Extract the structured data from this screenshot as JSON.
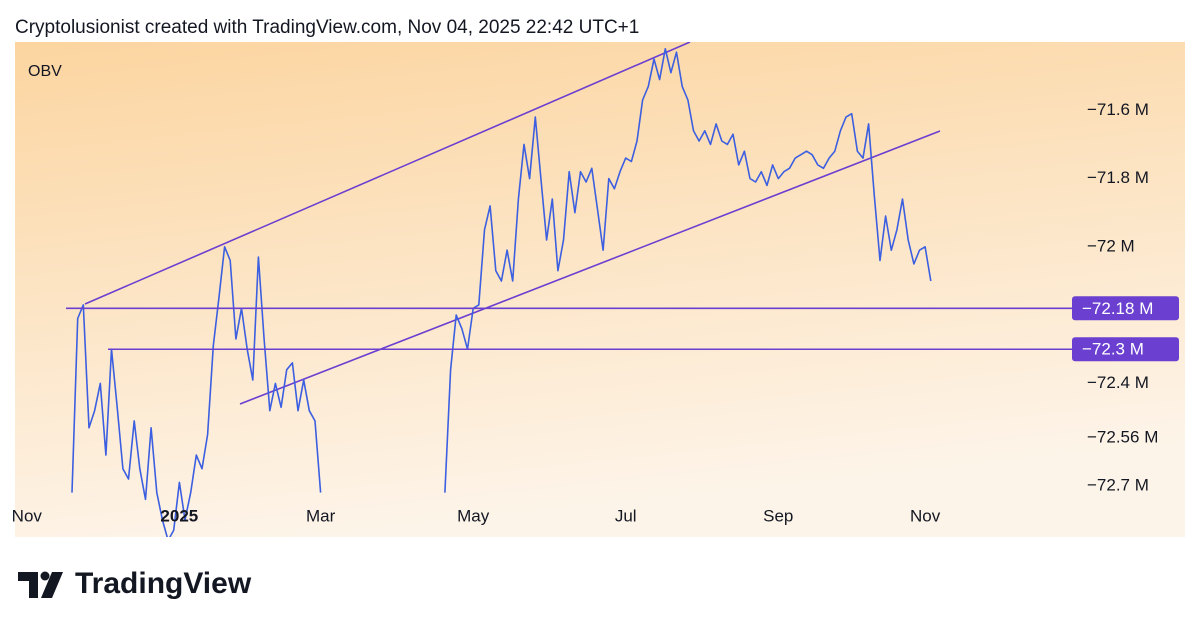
{
  "header": "Cryptolusionist created with TradingView.com, Nov 04, 2025 22:42 UTC+1",
  "brand": "TradingView",
  "chart_data": {
    "type": "line",
    "title": "OBV",
    "categories": [
      "Nov",
      null,
      null,
      null,
      null,
      null,
      null,
      null,
      null,
      null,
      null,
      null,
      null,
      null,
      null,
      null,
      null,
      null,
      null,
      null,
      null,
      null,
      null,
      null,
      null,
      null,
      null,
      "2025",
      null,
      null,
      null,
      null,
      null,
      null,
      null,
      null,
      null,
      null,
      null,
      null,
      null,
      null,
      null,
      null,
      null,
      null,
      null,
      null,
      null,
      null,
      null,
      null,
      "Mar",
      null,
      null,
      null,
      null,
      null,
      null,
      null,
      null,
      null,
      null,
      null,
      null,
      null,
      null,
      null,
      null,
      null,
      null,
      null,
      null,
      null,
      null,
      null,
      null,
      null,
      null,
      "May",
      null,
      null,
      null,
      null,
      null,
      null,
      null,
      null,
      null,
      null,
      null,
      null,
      null,
      null,
      null,
      null,
      null,
      null,
      null,
      null,
      null,
      null,
      null,
      null,
      null,
      null,
      "Jul",
      null,
      null,
      null,
      null,
      null,
      null,
      null,
      null,
      null,
      null,
      null,
      null,
      null,
      null,
      null,
      null,
      null,
      null,
      null,
      null,
      null,
      null,
      null,
      null,
      null,
      null,
      "Sep",
      null,
      null,
      null,
      null,
      null,
      null,
      null,
      null,
      null,
      null,
      null,
      null,
      null,
      null,
      null,
      null,
      null,
      null,
      null,
      null,
      null,
      null,
      null,
      null,
      null,
      "Nov",
      null
    ],
    "series": [
      {
        "name": "OBV",
        "color": "#3b5fe0",
        "values": [
          null,
          null,
          null,
          null,
          null,
          null,
          null,
          null,
          -72.72,
          -72.21,
          -72.17,
          -72.53,
          -72.48,
          -72.4,
          -72.61,
          -72.3,
          -72.47,
          -72.65,
          -72.68,
          -72.51,
          -72.65,
          -72.74,
          -72.53,
          -72.72,
          -72.8,
          -72.86,
          -72.83,
          -72.69,
          -72.8,
          -72.72,
          -72.61,
          -72.65,
          -72.55,
          -72.29,
          -72.15,
          -72.0,
          -72.04,
          -72.27,
          -72.18,
          -72.3,
          -72.39,
          -72.03,
          -72.27,
          -72.48,
          -72.4,
          -72.47,
          -72.36,
          -72.34,
          -72.48,
          -72.39,
          -72.48,
          -72.51,
          -72.72,
          null,
          null,
          null,
          null,
          null,
          null,
          null,
          null,
          null,
          null,
          null,
          null,
          null,
          null,
          null,
          null,
          null,
          null,
          null,
          null,
          null,
          -72.72,
          -72.36,
          -72.2,
          -72.24,
          -72.3,
          -72.18,
          -72.17,
          -71.95,
          -71.88,
          -72.07,
          -72.1,
          -72.01,
          -72.1,
          -71.86,
          -71.7,
          -71.8,
          -71.62,
          -71.8,
          -71.98,
          -71.86,
          -72.07,
          -71.98,
          -71.78,
          -71.9,
          -71.78,
          -71.81,
          -71.77,
          -71.89,
          -72.01,
          -71.8,
          -71.83,
          -71.78,
          -71.74,
          -71.75,
          -71.69,
          -71.57,
          -71.53,
          -71.45,
          -71.51,
          -71.42,
          -71.49,
          -71.43,
          -71.53,
          -71.57,
          -71.66,
          -71.69,
          -71.66,
          -71.7,
          -71.64,
          -71.69,
          -71.7,
          -71.67,
          -71.76,
          -71.72,
          -71.8,
          -71.81,
          -71.78,
          -71.82,
          -71.76,
          -71.8,
          -71.78,
          -71.77,
          -71.74,
          -71.73,
          -71.72,
          -71.73,
          -71.76,
          -71.77,
          -71.74,
          -71.72,
          -71.66,
          -71.62,
          -71.61,
          -71.72,
          -71.74,
          -71.64,
          -71.85,
          -72.04,
          -71.91,
          -72.01,
          -71.95,
          -71.86,
          -71.98,
          -72.05,
          -72.01,
          -72.0,
          -72.1
        ]
      }
    ],
    "ylim": [
      -72.85,
      -71.4
    ],
    "yticks": [
      {
        "value": -71.6,
        "label": "−71.6 M"
      },
      {
        "value": -71.8,
        "label": "−71.8 M"
      },
      {
        "value": -72,
        "label": "−72 M"
      },
      {
        "value": -72.4,
        "label": "−72.4 M"
      },
      {
        "value": -72.56,
        "label": "−72.56 M"
      },
      {
        "value": -72.7,
        "label": "−72.7 M"
      }
    ],
    "hlines": [
      {
        "value": -72.18,
        "label": "−72.18 M"
      },
      {
        "value": -72.3,
        "label": "−72.3 M"
      }
    ],
    "hline_color": "#6b3fd0",
    "grid": false
  }
}
